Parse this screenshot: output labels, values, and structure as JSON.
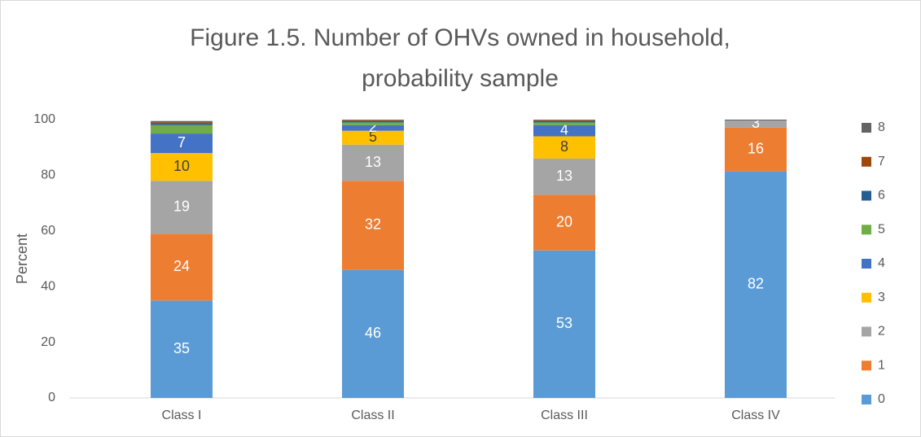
{
  "chart_data": {
    "type": "stacked_bar",
    "title": [
      "Figure 1.5.  Number of OHVs owned in household,",
      "probability sample"
    ],
    "y_label": "Percent",
    "categories": [
      "Class I",
      "Class II",
      "Class III",
      "Class IV"
    ],
    "ylim": [
      0,
      100
    ],
    "yticks": [
      0,
      20,
      40,
      60,
      80,
      100
    ],
    "grid": false,
    "legend": "right",
    "series": [
      {
        "name": "0",
        "color": "#5b9bd5",
        "values": [
          35,
          46,
          53,
          81.5
        ],
        "value_labels": [
          "35",
          "46",
          "53",
          "82"
        ]
      },
      {
        "name": "1",
        "color": "#ed7d31",
        "values": [
          24,
          32,
          20,
          15.6
        ],
        "value_labels": [
          "24",
          "32",
          "20",
          "16"
        ]
      },
      {
        "name": "2",
        "color": "#a5a5a5",
        "values": [
          19,
          13,
          13,
          2.6
        ],
        "value_labels": [
          "19",
          "13",
          "13",
          "3"
        ]
      },
      {
        "name": "3",
        "color": "#ffc000",
        "values": [
          10,
          5,
          8,
          0
        ],
        "value_labels": [
          "10",
          "5",
          "8",
          null
        ]
      },
      {
        "name": "4",
        "color": "#4472c4",
        "values": [
          7,
          2,
          4,
          0
        ],
        "value_labels": [
          "7",
          "2",
          "4",
          null
        ]
      },
      {
        "name": "5",
        "color": "#70ad47",
        "values": [
          3,
          1,
          1,
          0
        ]
      },
      {
        "name": "6",
        "color": "#255e91",
        "values": [
          0.5,
          0.5,
          0.5,
          0
        ]
      },
      {
        "name": "7",
        "color": "#9e480e",
        "values": [
          0.5,
          0.3,
          0.3,
          0
        ]
      },
      {
        "name": "8",
        "color": "#636363",
        "values": [
          0.5,
          0.2,
          0.2,
          0.3
        ]
      }
    ]
  }
}
